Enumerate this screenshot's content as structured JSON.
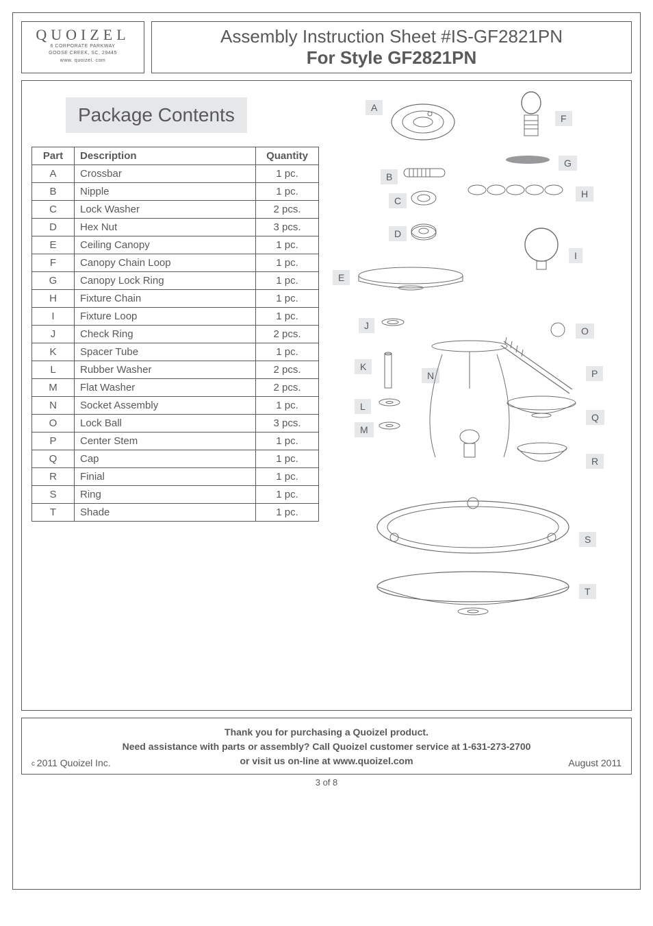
{
  "logo": {
    "name": "QUOIZEL",
    "addr1": "6 CORPORATE PARKWAY",
    "addr2": "GOOSE CREEK, SC, 29445",
    "addr3": "www. quoizel. com"
  },
  "title": {
    "line1": "Assembly Instruction Sheet #IS-GF2821PN",
    "line2": "For Style GF2821PN"
  },
  "section_title": "Package Contents",
  "table": {
    "headers": [
      "Part",
      "Description",
      "Quantity"
    ],
    "rows": [
      [
        "A",
        "Crossbar",
        "1 pc."
      ],
      [
        "B",
        "Nipple",
        "1 pc."
      ],
      [
        "C",
        "Lock Washer",
        "2 pcs."
      ],
      [
        "D",
        "Hex Nut",
        "3 pcs."
      ],
      [
        "E",
        "Ceiling Canopy",
        "1 pc."
      ],
      [
        "F",
        "Canopy Chain Loop",
        "1 pc."
      ],
      [
        "G",
        "Canopy Lock Ring",
        "1 pc."
      ],
      [
        "H",
        "Fixture Chain",
        "1 pc."
      ],
      [
        "I",
        "Fixture Loop",
        "1 pc."
      ],
      [
        "J",
        "Check Ring",
        "2 pcs."
      ],
      [
        "K",
        "Spacer Tube",
        "1 pc."
      ],
      [
        "L",
        "Rubber Washer",
        "2 pcs."
      ],
      [
        "M",
        "Flat Washer",
        "2 pcs."
      ],
      [
        "N",
        "Socket Assembly",
        "1 pc."
      ],
      [
        "O",
        "Lock Ball",
        "3 pcs."
      ],
      [
        "P",
        "Center Stem",
        "1 pc."
      ],
      [
        "Q",
        "Cap",
        "1 pc."
      ],
      [
        "R",
        "Finial",
        "1 pc."
      ],
      [
        "S",
        "Ring",
        "1 pc."
      ],
      [
        "T",
        "Shade",
        "1 pc."
      ]
    ]
  },
  "callouts": {
    "A": "A",
    "B": "B",
    "C": "C",
    "D": "D",
    "E": "E",
    "F": "F",
    "G": "G",
    "H": "H",
    "I": "I",
    "J": "J",
    "K": "K",
    "L": "L",
    "M": "M",
    "N": "N",
    "O": "O",
    "P": "P",
    "Q": "Q",
    "R": "R",
    "S": "S",
    "T": "T"
  },
  "footer": {
    "line1": "Thank you for purchasing a Quoizel product.",
    "line2": "Need assistance with parts or assembly? Call Quoizel customer service at 1-631-273-2700",
    "line3": "or visit us on-line at www.quoizel.com",
    "copyright": "2011  Quoizel Inc.",
    "date": "August 2011"
  },
  "pagenum": "3 of 8"
}
